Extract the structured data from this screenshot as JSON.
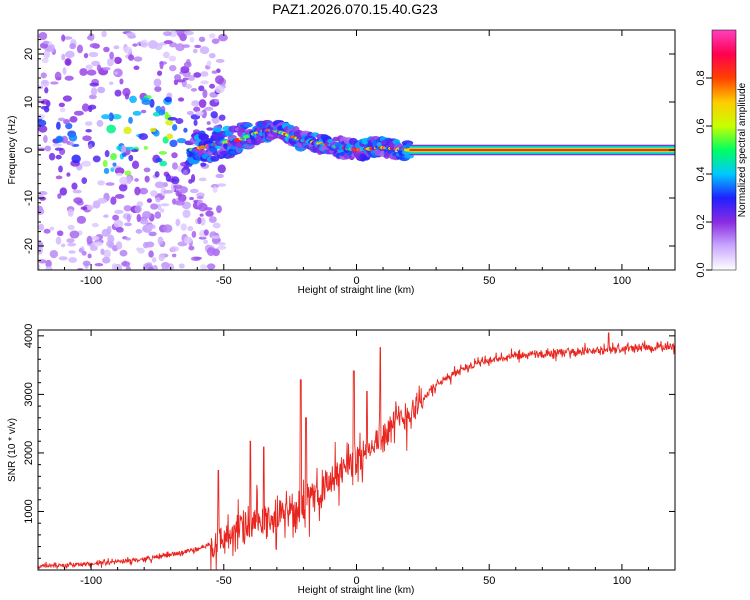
{
  "figure_title": "PAZ1.2026.070.15.40.G23",
  "chart_data": [
    {
      "type": "heatmap",
      "title": "PAZ1.2026.070.15.40.G23",
      "xlabel": "Height of straight line (km)",
      "ylabel": "Frequency (Hz)",
      "xlim": [
        -120,
        120
      ],
      "ylim": [
        -25,
        25
      ],
      "xticks": [
        -100,
        -50,
        0,
        50,
        100
      ],
      "yticks": [
        -20,
        -10,
        0,
        10,
        20
      ],
      "xtick_labels": [
        "-100",
        "-50",
        "0",
        "50",
        "100"
      ],
      "ytick_labels": [
        "-20",
        "-10",
        "0",
        "10",
        "20"
      ],
      "colorbar": {
        "label": "Normalized spectral amplitude",
        "range": [
          0,
          1
        ],
        "ticks": [
          0.0,
          0.2,
          0.4,
          0.6,
          0.8
        ],
        "tick_labels": [
          "0.0",
          "0.2",
          "0.4",
          "0.6",
          "0.8"
        ],
        "colors": [
          "#ffffff",
          "#c9a8ff",
          "#8a2be2",
          "#2020ff",
          "#00c8ff",
          "#00ff60",
          "#c8ff00",
          "#ffcc00",
          "#ff4000",
          "#ff0050",
          "#ff40c0"
        ]
      },
      "ridge_centre_hz": [
        [
          -62,
          0
        ],
        [
          -55,
          1
        ],
        [
          -45,
          2
        ],
        [
          -35,
          4
        ],
        [
          -30,
          4
        ],
        [
          -25,
          3
        ],
        [
          -20,
          2
        ],
        [
          -10,
          1
        ],
        [
          0,
          0
        ],
        [
          10,
          0.5
        ],
        [
          20,
          0
        ],
        [
          120,
          0
        ]
      ],
      "pure_tone_from_km": 20,
      "scatter_region_km": [
        -120,
        -55
      ]
    },
    {
      "type": "line",
      "xlabel": "Height of straight line (km)",
      "ylabel": "SNR (10 * v/v)",
      "xlim": [
        -120,
        120
      ],
      "ylim": [
        0,
        4100
      ],
      "xticks": [
        -100,
        -50,
        0,
        50,
        100
      ],
      "yticks": [
        1000,
        2000,
        3000,
        4000
      ],
      "xtick_labels": [
        "-100",
        "-50",
        "0",
        "50",
        "100"
      ],
      "ytick_labels": [
        "1000",
        "2000",
        "3000",
        "4000"
      ],
      "series": [
        {
          "name": "SNR",
          "color": "#e8251e",
          "trend_x": [
            -120,
            -100,
            -80,
            -60,
            -50,
            -40,
            -30,
            -20,
            -10,
            0,
            10,
            20,
            30,
            40,
            50,
            60,
            80,
            100,
            120
          ],
          "trend_y": [
            60,
            100,
            180,
            350,
            550,
            750,
            900,
            1100,
            1500,
            1900,
            2300,
            2700,
            3150,
            3450,
            3580,
            3650,
            3720,
            3780,
            3820
          ],
          "spikes": [
            {
              "x": -21,
              "y": 3250
            },
            {
              "x": -19,
              "y": 2600
            },
            {
              "x": -40,
              "y": 2200
            },
            {
              "x": -35,
              "y": 2100
            },
            {
              "x": -52,
              "y": 1700
            },
            {
              "x": -1,
              "y": 3400
            },
            {
              "x": 9,
              "y": 3800
            },
            {
              "x": 4,
              "y": 3050
            },
            {
              "x": 95,
              "y": 4050
            }
          ]
        }
      ]
    }
  ]
}
